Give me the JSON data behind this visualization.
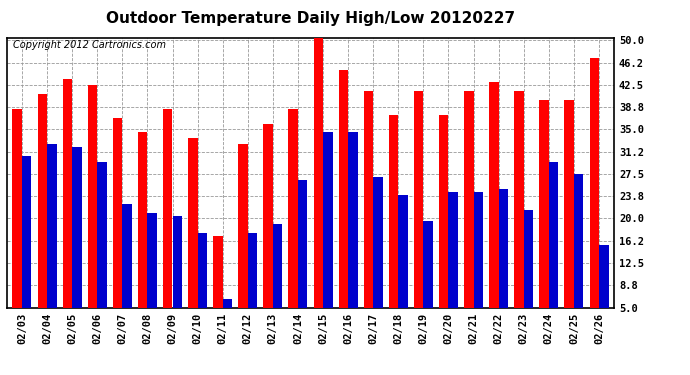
{
  "title": "Outdoor Temperature Daily High/Low 20120227",
  "copyright": "Copyright 2012 Cartronics.com",
  "dates": [
    "02/03",
    "02/04",
    "02/05",
    "02/06",
    "02/07",
    "02/08",
    "02/09",
    "02/10",
    "02/11",
    "02/12",
    "02/13",
    "02/14",
    "02/15",
    "02/16",
    "02/17",
    "02/18",
    "02/19",
    "02/20",
    "02/21",
    "02/22",
    "02/23",
    "02/24",
    "02/25",
    "02/26"
  ],
  "highs": [
    38.5,
    41.0,
    43.5,
    42.5,
    37.0,
    34.5,
    38.5,
    33.5,
    17.0,
    32.5,
    36.0,
    38.5,
    50.5,
    45.0,
    41.5,
    37.5,
    41.5,
    37.5,
    41.5,
    43.0,
    41.5,
    40.0,
    40.0,
    47.0
  ],
  "lows": [
    30.5,
    32.5,
    32.0,
    29.5,
    22.5,
    21.0,
    20.5,
    17.5,
    6.5,
    17.5,
    19.0,
    26.5,
    34.5,
    34.5,
    27.0,
    24.0,
    19.5,
    24.5,
    24.5,
    25.0,
    21.5,
    29.5,
    27.5,
    15.5
  ],
  "high_color": "#ff0000",
  "low_color": "#0000cc",
  "bg_color": "#ffffff",
  "grid_color": "#999999",
  "yticks": [
    5.0,
    8.8,
    12.5,
    16.2,
    20.0,
    23.8,
    27.5,
    31.2,
    35.0,
    38.8,
    42.5,
    46.2,
    50.0
  ],
  "ymin": 5.0,
  "ymax": 50.5,
  "title_fontsize": 11,
  "copyright_fontsize": 7,
  "tick_fontsize": 7.5,
  "bar_width": 0.38
}
